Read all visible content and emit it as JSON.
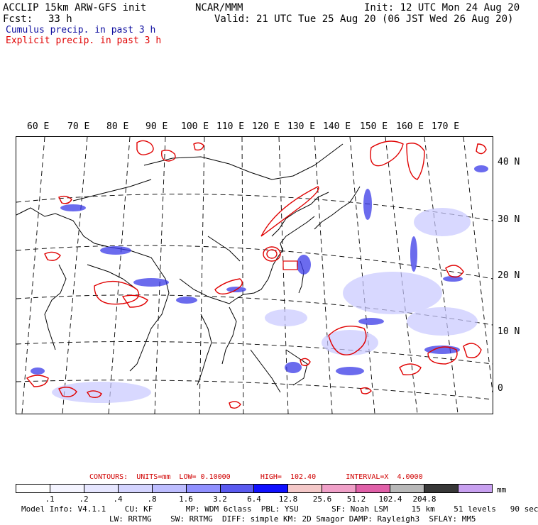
{
  "header": {
    "title": "ACCLIP 15km ARW-GFS init",
    "org": "NCAR/MMM",
    "init": "Init: 12 UTC Mon 24 Aug 20",
    "fcst_label": "Fcst:",
    "fcst_value": "33 h",
    "valid": "Valid: 21 UTC Tue 25 Aug 20 (06 JST Wed 26 Aug 20)",
    "cumulus_legend": "Cumulus precip. in past 3 h",
    "explicit_legend": "Explicit precip. in past 3 h",
    "cumulus_color": "#1010a0",
    "explicit_color": "#e00000"
  },
  "map": {
    "lon_labels": [
      "60 E",
      "70 E",
      "80 E",
      "90 E",
      "100 E",
      "110 E",
      "120 E",
      "130 E",
      "140 E",
      "150 E",
      "160 E",
      "170 E"
    ],
    "lat_labels": [
      "40 N",
      "30 N",
      "20 N",
      "10 N",
      "0"
    ]
  },
  "legend": {
    "contours": "CONTOURS:  UNITS=mm  LOW= 0.10000       HIGH=  102.40       INTERVAL=X  4.0000",
    "colors": [
      "#ffffff",
      "#f4f4ff",
      "#e6e6ff",
      "#d4d4ff",
      "#bdbdff",
      "#9090ff",
      "#5a5af0",
      "#1010ff",
      "#f4c8c8",
      "#f0a0c8",
      "#e060a8",
      "#b8b8b8",
      "#383838",
      "#c8a0f0"
    ],
    "ticks": [
      ".1",
      ".2",
      ".4",
      ".8",
      "1.6",
      "3.2",
      "6.4",
      "12.8",
      "25.6",
      "51.2",
      "102.4",
      "204.8"
    ],
    "unit": "mm"
  },
  "model_info": {
    "line1": "Model Info: V4.1.1    CU: KF       MP: WDM 6class  PBL: YSU       SF: Noah LSM     15 km    51 levels   90 sec",
    "line2": "LW: RRTMG    SW: RRTMG  DIFF: simple KM: 2D Smagor DAMP: Rayleigh3  SFLAY: MM5"
  }
}
